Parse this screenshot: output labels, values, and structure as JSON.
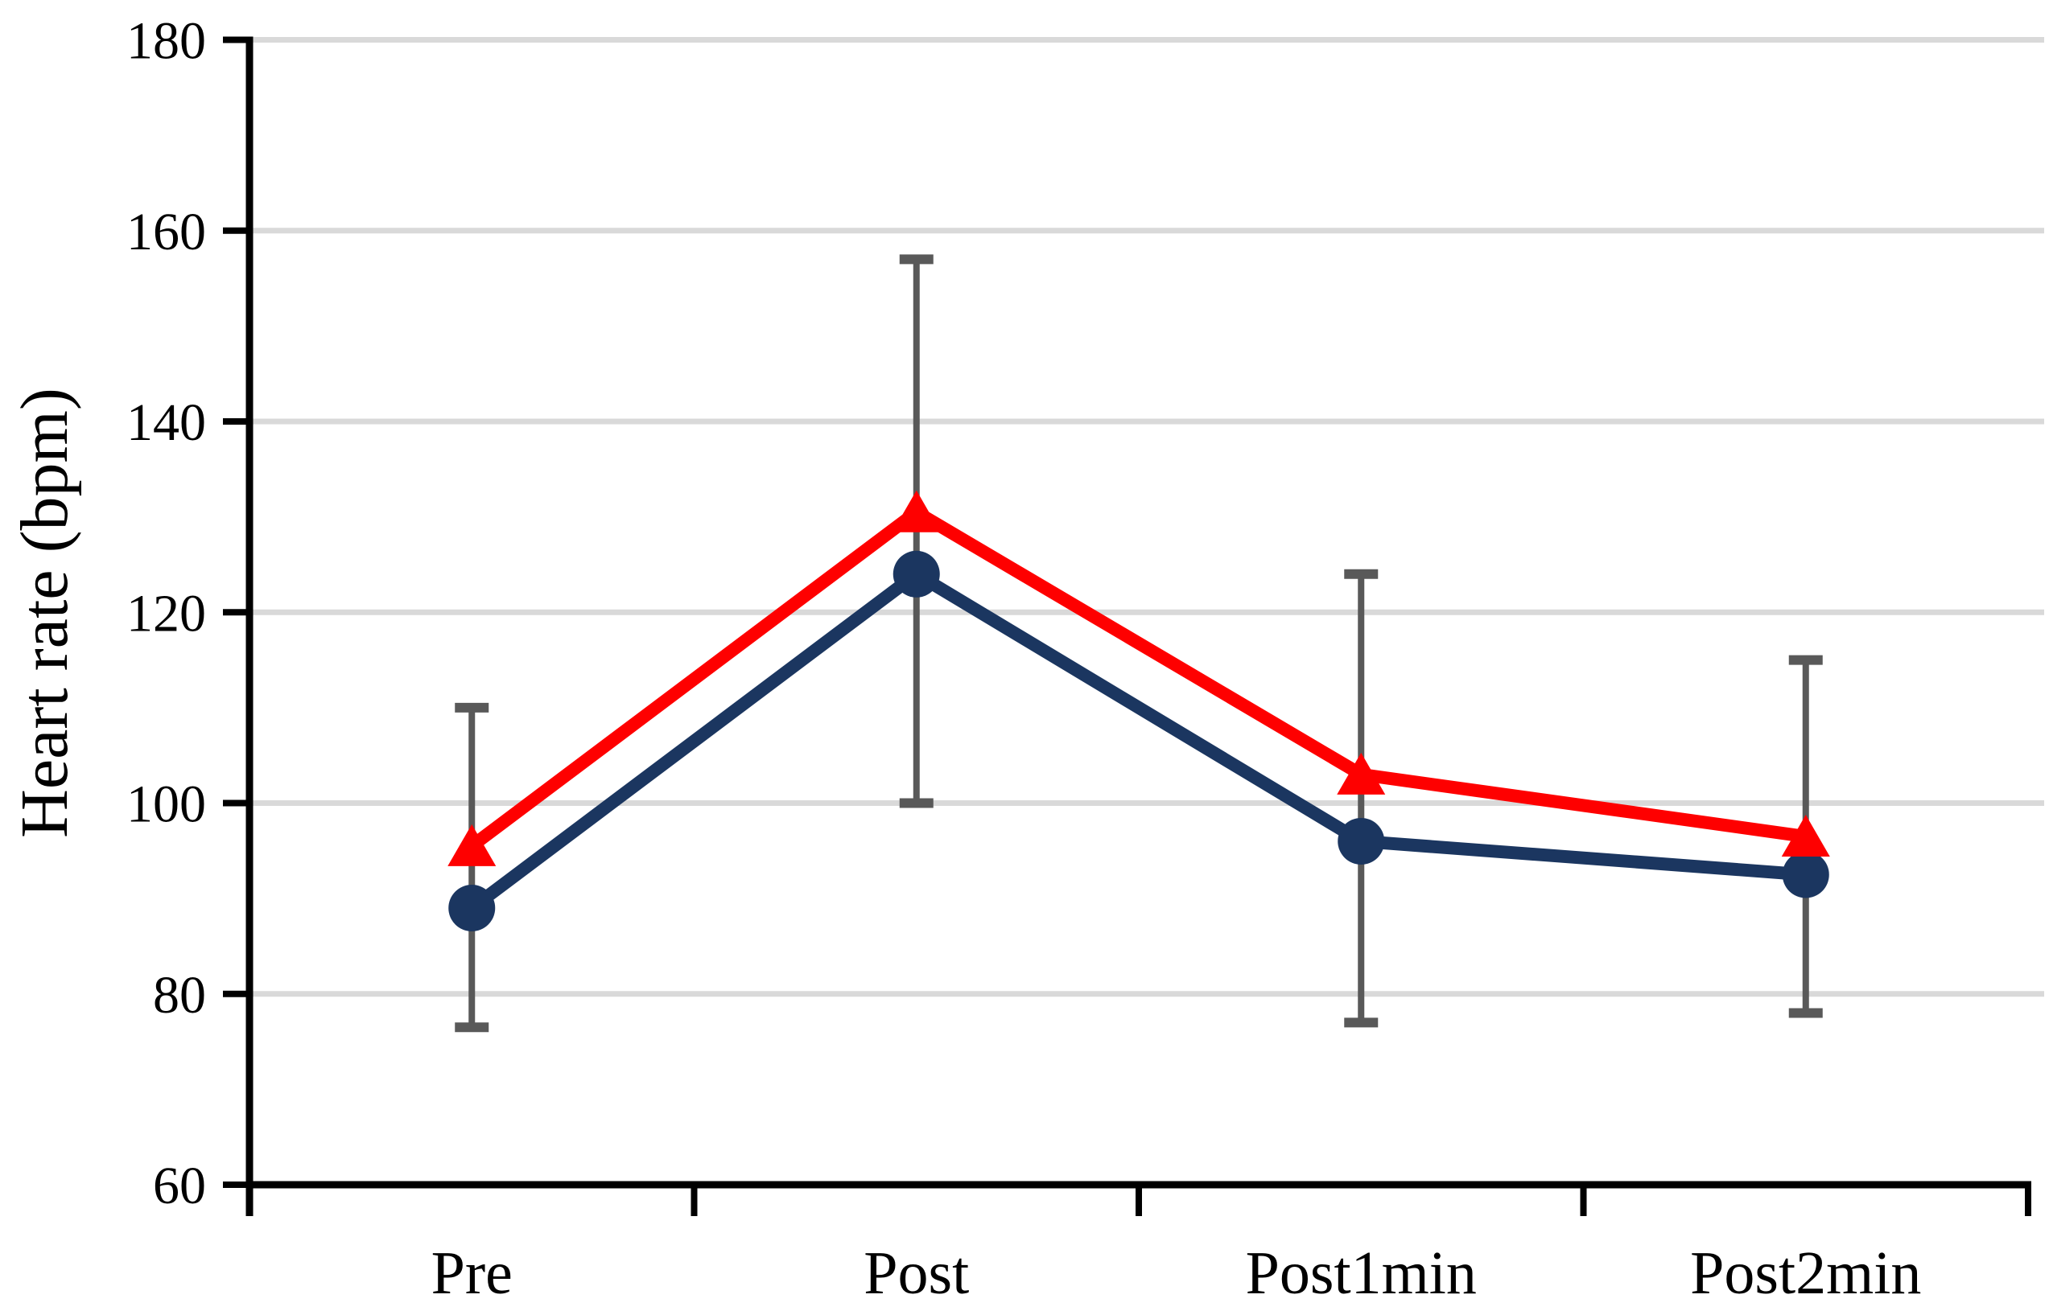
{
  "chart_data": {
    "type": "line",
    "title": "",
    "xlabel": "",
    "ylabel": "Heart rate (bpm)",
    "categories": [
      "Pre",
      "Post",
      "Post1min",
      "Post2min"
    ],
    "series": [
      {
        "name": "navy-circle-series",
        "marker": "circle",
        "color": "#1B3660",
        "values": [
          89,
          124,
          96,
          92.5
        ]
      },
      {
        "name": "red-triangle-series",
        "marker": "triangle-up",
        "color": "#FE0000",
        "values": [
          95.5,
          130.5,
          103,
          96.5
        ]
      }
    ],
    "error_bars": {
      "color": "#595959",
      "ranges": [
        {
          "low": 76.5,
          "high": 110
        },
        {
          "low": 100,
          "high": 157
        },
        {
          "low": 77,
          "high": 124
        },
        {
          "low": 78,
          "high": 115
        }
      ]
    },
    "ylim": [
      60,
      180
    ],
    "yticks": [
      60,
      80,
      100,
      120,
      140,
      160,
      180
    ],
    "grid": "horizontal",
    "gridline_values": [
      80,
      100,
      120,
      140,
      160,
      180
    ],
    "gridline_color": "#D9D9D9",
    "axis_color": "#000000",
    "legend": "none",
    "background": "#FFFFFF"
  }
}
